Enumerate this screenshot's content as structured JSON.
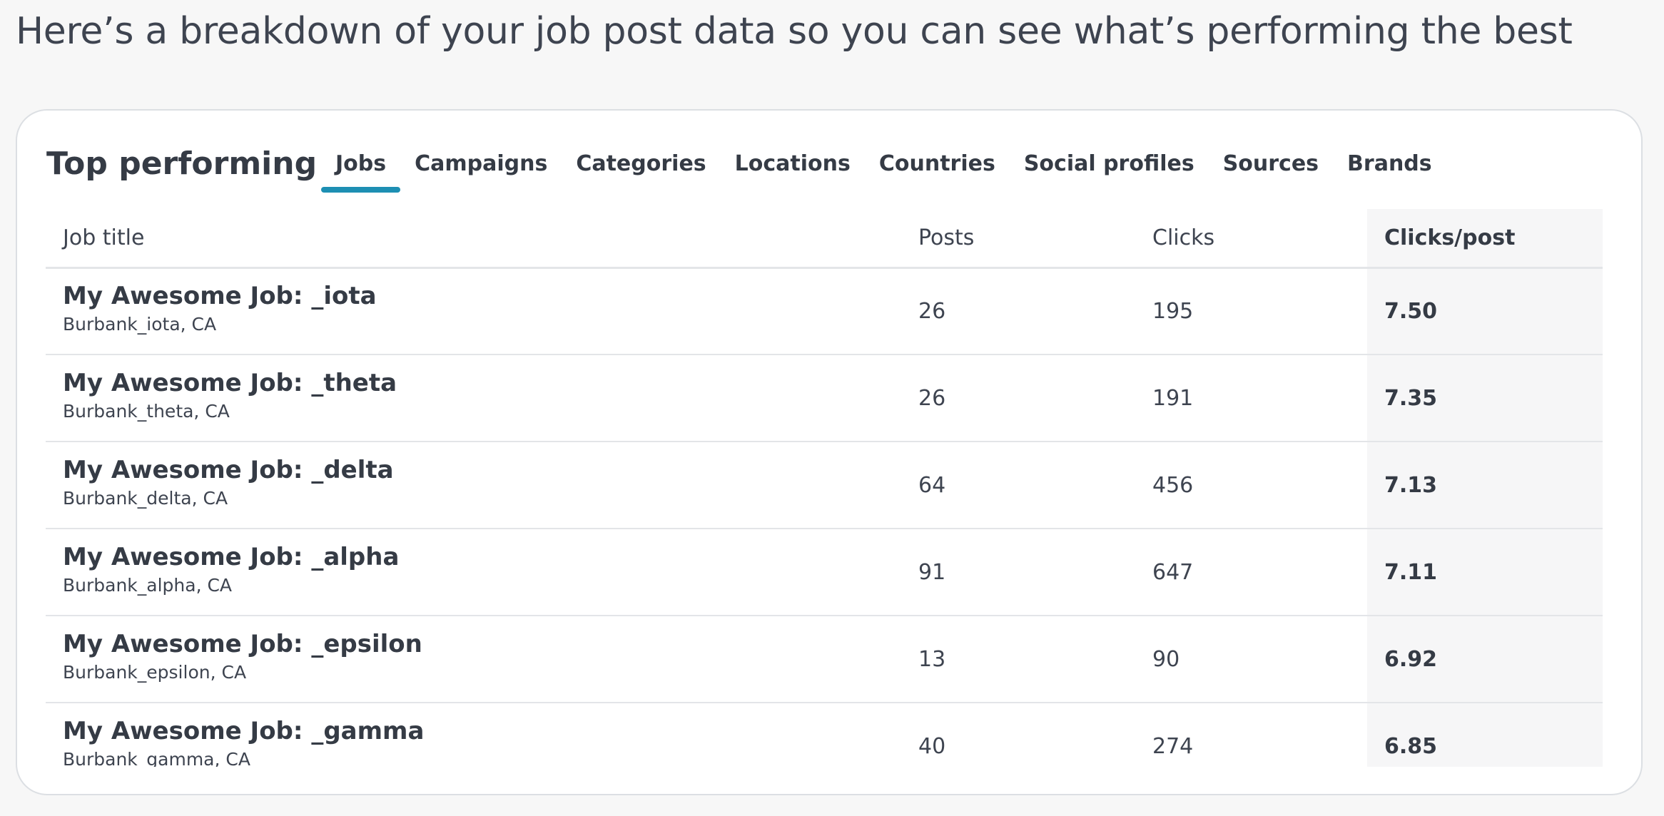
{
  "page": {
    "headline": "Here’s a breakdown of your job post data so you can see what’s performing the best"
  },
  "card": {
    "title": "Top performing",
    "tabs": [
      {
        "label": "Jobs",
        "active": true
      },
      {
        "label": "Campaigns",
        "active": false
      },
      {
        "label": "Categories",
        "active": false
      },
      {
        "label": "Locations",
        "active": false
      },
      {
        "label": "Countries",
        "active": false
      },
      {
        "label": "Social profiles",
        "active": false
      },
      {
        "label": "Sources",
        "active": false
      },
      {
        "label": "Brands",
        "active": false
      }
    ],
    "accent_color": "#1d8fb3"
  },
  "table": {
    "columns": [
      "Job title",
      "Posts",
      "Clicks",
      "Clicks/post"
    ],
    "sorted_column": "Clicks/post",
    "rows": [
      {
        "title": "My Awesome Job: _iota",
        "location": "Burbank_iota, CA",
        "posts": "26",
        "clicks": "195",
        "clicks_per_post": "7.50"
      },
      {
        "title": "My Awesome Job: _theta",
        "location": "Burbank_theta, CA",
        "posts": "26",
        "clicks": "191",
        "clicks_per_post": "7.35"
      },
      {
        "title": "My Awesome Job: _delta",
        "location": "Burbank_delta, CA",
        "posts": "64",
        "clicks": "456",
        "clicks_per_post": "7.13"
      },
      {
        "title": "My Awesome Job: _alpha",
        "location": "Burbank_alpha, CA",
        "posts": "91",
        "clicks": "647",
        "clicks_per_post": "7.11"
      },
      {
        "title": "My Awesome Job: _epsilon",
        "location": "Burbank_epsilon, CA",
        "posts": "13",
        "clicks": "90",
        "clicks_per_post": "6.92"
      },
      {
        "title": "My Awesome Job: _gamma",
        "location": "Burbank_gamma, CA",
        "posts": "40",
        "clicks": "274",
        "clicks_per_post": "6.85"
      }
    ]
  }
}
